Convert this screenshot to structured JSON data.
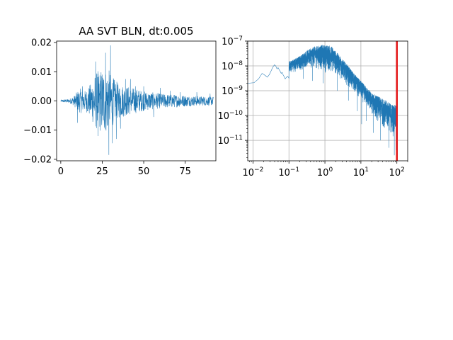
{
  "colors": {
    "trace": "#1f77b4",
    "marker": "#e41a1c",
    "grid": "#b0b0b0"
  },
  "chart_data": [
    {
      "type": "line",
      "title": "AA SVT BLN, dt:0.005",
      "xlabel": "",
      "ylabel": "",
      "xlim": [
        -2.5,
        93.5
      ],
      "ylim": [
        -0.0205,
        0.0205
      ],
      "xticks": [
        0,
        25,
        50,
        75
      ],
      "xtick_labels": [
        "0",
        "25",
        "50",
        "75"
      ],
      "yticks": [
        -0.02,
        -0.01,
        0.0,
        0.01,
        0.02
      ],
      "ytick_labels": [
        "−0.02",
        "−0.01",
        "0.00",
        "0.01",
        "0.02"
      ],
      "grid": false,
      "series": [
        {
          "envelope": [
            [
              0,
              0.0005
            ],
            [
              5,
              0.0008
            ],
            [
              8,
              0.002
            ],
            [
              10,
              0.004
            ],
            [
              12,
              0.005
            ],
            [
              15,
              0.004
            ],
            [
              18,
              0.007
            ],
            [
              20,
              0.01
            ],
            [
              22,
              0.012
            ],
            [
              25,
              0.013
            ],
            [
              28,
              0.013
            ],
            [
              30,
              0.012
            ],
            [
              32,
              0.009
            ],
            [
              35,
              0.007
            ],
            [
              40,
              0.006
            ],
            [
              45,
              0.005
            ],
            [
              50,
              0.004
            ],
            [
              55,
              0.0035
            ],
            [
              60,
              0.003
            ],
            [
              70,
              0.0025
            ],
            [
              80,
              0.002
            ],
            [
              92,
              0.0018
            ]
          ],
          "peaks": [
            [
              10.0,
              -0.0075
            ],
            [
              13.0,
              0.005
            ],
            [
              21.0,
              0.0135
            ],
            [
              22.5,
              -0.012
            ],
            [
              27.0,
              0.0165
            ],
            [
              29.0,
              -0.0185
            ],
            [
              30.0,
              0.019
            ],
            [
              31.0,
              -0.0145
            ],
            [
              33.5,
              -0.013
            ],
            [
              36.0,
              -0.0095
            ],
            [
              39.0,
              0.0075
            ],
            [
              42.0,
              0.0075
            ],
            [
              45.0,
              0.005
            ],
            [
              50.0,
              0.005
            ],
            [
              56.0,
              -0.0055
            ],
            [
              60.0,
              0.0045
            ],
            [
              66.0,
              0.0035
            ],
            [
              72.0,
              0.003
            ],
            [
              82.0,
              0.003
            ],
            [
              90.0,
              0.0025
            ]
          ]
        }
      ]
    },
    {
      "type": "line",
      "title": "",
      "xlabel": "",
      "ylabel": "",
      "xscale": "log",
      "yscale": "log",
      "xlim": [
        0.00715,
        200
      ],
      "ylim": [
        1.5e-12,
        1e-07
      ],
      "xticks": [
        0.01,
        0.1,
        1,
        10,
        100
      ],
      "xtick_labels": [
        {
          "base": "10",
          "exp": "−2"
        },
        {
          "base": "10",
          "exp": "−1"
        },
        {
          "base": "10",
          "exp": "0"
        },
        {
          "base": "10",
          "exp": "1"
        },
        {
          "base": "10",
          "exp": "2"
        }
      ],
      "yticks": [
        1e-11,
        1e-10,
        1e-09,
        1e-08,
        1e-07
      ],
      "ytick_labels": [
        {
          "base": "10",
          "exp": "−11"
        },
        {
          "base": "10",
          "exp": "−10"
        },
        {
          "base": "10",
          "exp": "−9"
        },
        {
          "base": "10",
          "exp": "−8"
        },
        {
          "base": "10",
          "exp": "−7"
        }
      ],
      "grid": true,
      "vline_x": 100,
      "series": [
        {
          "points": [
            [
              0.00715,
              2e-09
            ],
            [
              0.0107,
              2.1e-09
            ],
            [
              0.0143,
              3e-09
            ],
            [
              0.0179,
              5e-09
            ],
            [
              0.0215,
              4.2e-09
            ],
            [
              0.025,
              3.5e-09
            ],
            [
              0.0286,
              4.5e-09
            ],
            [
              0.0322,
              6.5e-09
            ],
            [
              0.0358,
              9e-09
            ],
            [
              0.0394,
              1.1e-08
            ],
            [
              0.0429,
              1e-08
            ],
            [
              0.0465,
              7.5e-09
            ],
            [
              0.05,
              8.5e-09
            ],
            [
              0.0536,
              7e-09
            ],
            [
              0.0572,
              6e-09
            ],
            [
              0.0608,
              5e-09
            ],
            [
              0.0644,
              5.5e-09
            ],
            [
              0.068,
              4.5e-09
            ],
            [
              0.0715,
              4e-09
            ],
            [
              0.0787,
              3e-09
            ],
            [
              0.0858,
              3.5e-09
            ],
            [
              0.093,
              3.8e-09
            ],
            [
              0.1,
              3.2e-09
            ]
          ],
          "noise_band": [
            [
              0.1,
              5e-09,
              1.5e-08
            ],
            [
              0.2,
              6e-09,
              2.5e-08
            ],
            [
              0.3,
              8e-09,
              4e-08
            ],
            [
              0.5,
              8e-09,
              6e-08
            ],
            [
              0.8,
              6e-09,
              7e-08
            ],
            [
              1.0,
              5e-09,
              7e-08
            ],
            [
              1.5,
              5e-09,
              6.5e-08
            ],
            [
              2.0,
              4e-09,
              4e-08
            ],
            [
              3.0,
              2.5e-09,
              2e-08
            ],
            [
              5.0,
              1.2e-09,
              8e-09
            ],
            [
              8.0,
              6e-10,
              3.5e-09
            ],
            [
              10.0,
              4e-10,
              2.5e-09
            ],
            [
              15.0,
              2e-10,
              1.3e-09
            ],
            [
              20.0,
              1e-10,
              8e-10
            ],
            [
              30.0,
              5e-11,
              6e-10
            ],
            [
              50.0,
              2.5e-11,
              4e-10
            ],
            [
              70.0,
              1.5e-11,
              3e-10
            ],
            [
              100.0,
              1e-11,
              2.5e-10
            ]
          ],
          "dips": [
            [
              0.25,
              3e-09
            ],
            [
              0.45,
              2.5e-09
            ],
            [
              0.9,
              2e-09
            ],
            [
              2.2,
              1e-09
            ],
            [
              4.5,
              4e-10
            ],
            [
              8.0,
              1.5e-10
            ],
            [
              10.5,
              4.5e-11
            ],
            [
              14.0,
              6e-11
            ],
            [
              22.0,
              2e-11
            ],
            [
              35.0,
              1e-11
            ],
            [
              60.0,
              5e-12
            ],
            [
              85.0,
              2.5e-12
            ],
            [
              95.0,
              4e-12
            ]
          ]
        }
      ]
    }
  ]
}
